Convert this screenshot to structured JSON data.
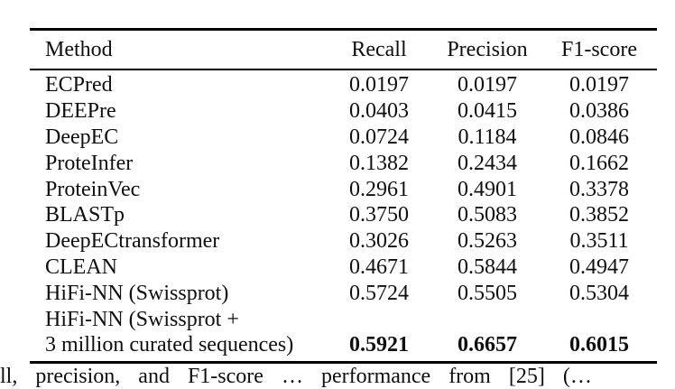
{
  "page": {
    "background_color": "#ffffff",
    "text_color": "#0f0f0f",
    "rule_color": "#000000"
  },
  "table": {
    "headers": {
      "method": "Method",
      "recall": "Recall",
      "precision": "Precision",
      "f1": "F1-score"
    },
    "rows": [
      {
        "method": "ECPred",
        "recall": "0.0197",
        "precision": "0.0197",
        "f1": "0.0197",
        "bold": false
      },
      {
        "method": "DEEPre",
        "recall": "0.0403",
        "precision": "0.0415",
        "f1": "0.0386",
        "bold": false
      },
      {
        "method": "DeepEC",
        "recall": "0.0724",
        "precision": "0.1184",
        "f1": "0.0846",
        "bold": false
      },
      {
        "method": "ProteInfer",
        "recall": "0.1382",
        "precision": "0.2434",
        "f1": "0.1662",
        "bold": false
      },
      {
        "method": "ProteinVec",
        "recall": "0.2961",
        "precision": "0.4901",
        "f1": "0.3378",
        "bold": false
      },
      {
        "method": "BLASTp",
        "recall": "0.3750",
        "precision": "0.5083",
        "f1": "0.3852",
        "bold": false
      },
      {
        "method": "DeepECtransformer",
        "recall": "0.3026",
        "precision": "0.5263",
        "f1": "0.3511",
        "bold": false
      },
      {
        "method": "CLEAN",
        "recall": "0.4671",
        "precision": "0.5844",
        "f1": "0.4947",
        "bold": false
      },
      {
        "method": "HiFi-NN (Swissprot)",
        "recall": "0.5724",
        "precision": "0.5505",
        "f1": "0.5304",
        "bold": false
      },
      {
        "method": "HiFi-NN (Swissprot +",
        "recall": "",
        "precision": "",
        "f1": "",
        "bold": false
      },
      {
        "method": "3 million curated sequences)",
        "recall": "0.5921",
        "precision": "0.6657",
        "f1": "0.6015",
        "bold": true
      }
    ]
  },
  "caption_fragment": "ll, precision, and F1-score … performance from [25] (…"
}
